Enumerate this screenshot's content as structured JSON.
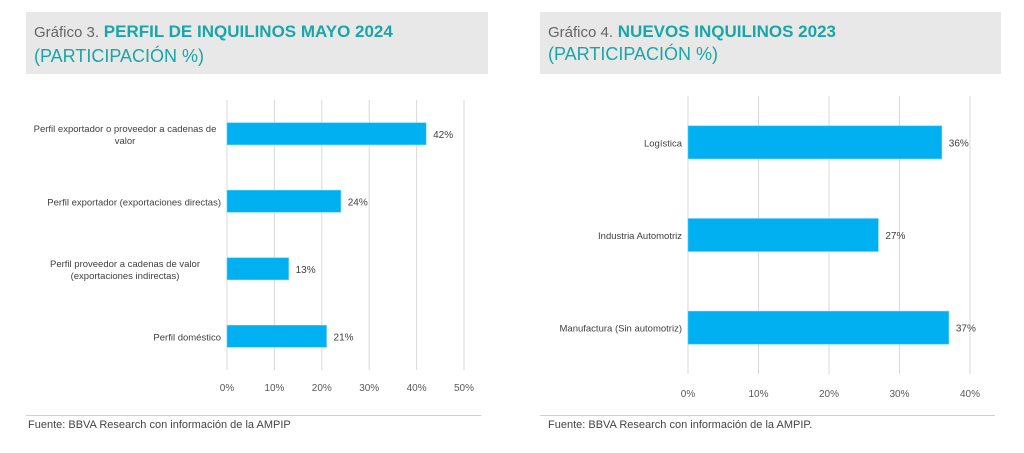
{
  "chart_data": [
    {
      "type": "bar",
      "orientation": "horizontal",
      "title_prefix": "Gráfico 3.",
      "title": "PERFIL DE INQUILINOS MAYO 2024",
      "subtitle": "(PARTICIPACIÓN %)",
      "categories": [
        "Perfil exportador o proveedor a cadenas de valor",
        "Perfil exportador (exportaciones directas)",
        "Perfil proveedor a cadenas de valor (exportaciones indirectas)",
        "Perfil doméstico"
      ],
      "category_lines": [
        [
          "Perfil exportador o proveedor a cadenas de",
          "valor"
        ],
        [
          "Perfil exportador (exportaciones directas)"
        ],
        [
          "Perfil proveedor a cadenas de valor",
          "(exportaciones indirectas)"
        ],
        [
          "Perfil doméstico"
        ]
      ],
      "values": [
        42,
        24,
        13,
        21
      ],
      "data_labels": [
        "42%",
        "24%",
        "13%",
        "21%"
      ],
      "xlim": [
        0,
        50
      ],
      "xticks": [
        0,
        10,
        20,
        30,
        40,
        50
      ],
      "xtick_labels": [
        "0%",
        "10%",
        "20%",
        "30%",
        "40%",
        "50%"
      ],
      "xlabel": "",
      "ylabel": "",
      "grid": true,
      "legend": "none",
      "bar_color": "#00b0f0",
      "source": "Fuente: BBVA Research con información de la AMPIP"
    },
    {
      "type": "bar",
      "orientation": "horizontal",
      "title_prefix": "Gráfico 4.",
      "title": "NUEVOS INQUILINOS 2023",
      "subtitle": "(PARTICIPACIÓN %)",
      "categories": [
        "Logística",
        "Industria Automotriz",
        "Manufactura (Sin automotriz)"
      ],
      "category_lines": [
        [
          "Logística"
        ],
        [
          "Industria Automotriz"
        ],
        [
          "Manufactura (Sin automotriz)"
        ]
      ],
      "values": [
        36,
        27,
        37
      ],
      "data_labels": [
        "36%",
        "27%",
        "37%"
      ],
      "xlim": [
        0,
        40
      ],
      "xticks": [
        0,
        10,
        20,
        30,
        40
      ],
      "xtick_labels": [
        "0%",
        "10%",
        "20%",
        "30%",
        "40%"
      ],
      "xlabel": "",
      "ylabel": "",
      "grid": true,
      "legend": "none",
      "bar_color": "#00b0f0",
      "source": "Fuente: BBVA Research con información de la AMPIP."
    }
  ]
}
